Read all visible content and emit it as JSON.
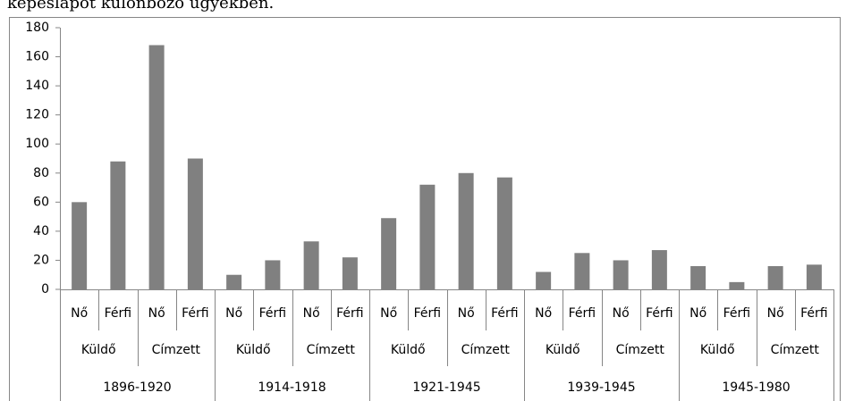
{
  "caption": "képeslapot különböző ügyekben.",
  "chart_data": {
    "type": "bar",
    "categories": [
      "Nő",
      "Férfi",
      "Nő",
      "Férfi",
      "Nő",
      "Férfi",
      "Nő",
      "Férfi",
      "Nő",
      "Férfi",
      "Nő",
      "Férfi",
      "Nő",
      "Férfi",
      "Nő",
      "Férfi",
      "Nő",
      "Férfi",
      "Nő",
      "Férfi"
    ],
    "subgroups": [
      "Küldő",
      "Címzett",
      "Küldő",
      "Címzett",
      "Küldő",
      "Címzett",
      "Küldő",
      "Címzett",
      "Küldő",
      "Címzett"
    ],
    "groups": [
      "1896-1920",
      "1914-1918",
      "1921-1945",
      "1939-1945",
      "1945-1980"
    ],
    "values": [
      60,
      88,
      168,
      90,
      10,
      20,
      33,
      22,
      49,
      72,
      80,
      77,
      12,
      25,
      20,
      27,
      16,
      5,
      16,
      17
    ],
    "color": "#808080",
    "ylim": [
      0,
      180
    ],
    "yticks": [
      0,
      20,
      40,
      60,
      80,
      100,
      120,
      140,
      160,
      180
    ],
    "grid": false
  }
}
